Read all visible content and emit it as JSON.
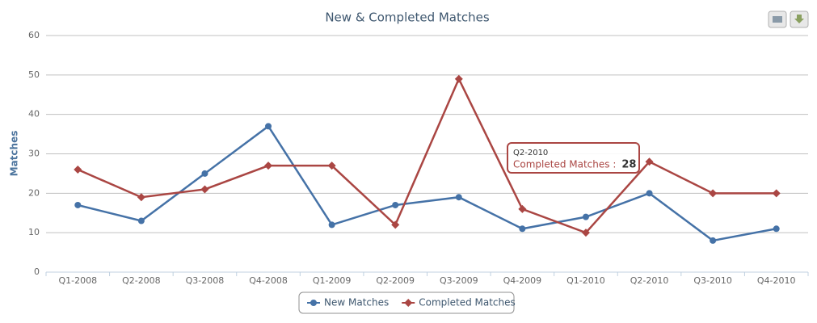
{
  "chart_data": {
    "type": "line",
    "title": "New & Completed Matches",
    "y_label": "Matches",
    "categories": [
      "Q1-2008",
      "Q2-2008",
      "Q3-2008",
      "Q4-2008",
      "Q1-2009",
      "Q2-2009",
      "Q3-2009",
      "Q4-2009",
      "Q1-2010",
      "Q2-2010",
      "Q3-2010",
      "Q4-2010"
    ],
    "series": [
      {
        "name": "New Matches",
        "color": "#4572A7",
        "marker": "circle",
        "values": [
          17,
          13,
          25,
          37,
          12,
          17,
          19,
          11,
          14,
          20,
          8,
          11
        ]
      },
      {
        "name": "Completed Matches",
        "color": "#AA4643",
        "marker": "diamond",
        "values": [
          26,
          19,
          21,
          27,
          27,
          12,
          49,
          16,
          10,
          28,
          20,
          20
        ]
      }
    ],
    "ylim": [
      0,
      60
    ],
    "yticks": [
      0,
      10,
      20,
      30,
      40,
      50,
      60
    ],
    "grid": true,
    "legend": "bottom",
    "tooltip": {
      "title": "Q2-2010",
      "label": "Completed Matches :",
      "value": 28
    }
  }
}
